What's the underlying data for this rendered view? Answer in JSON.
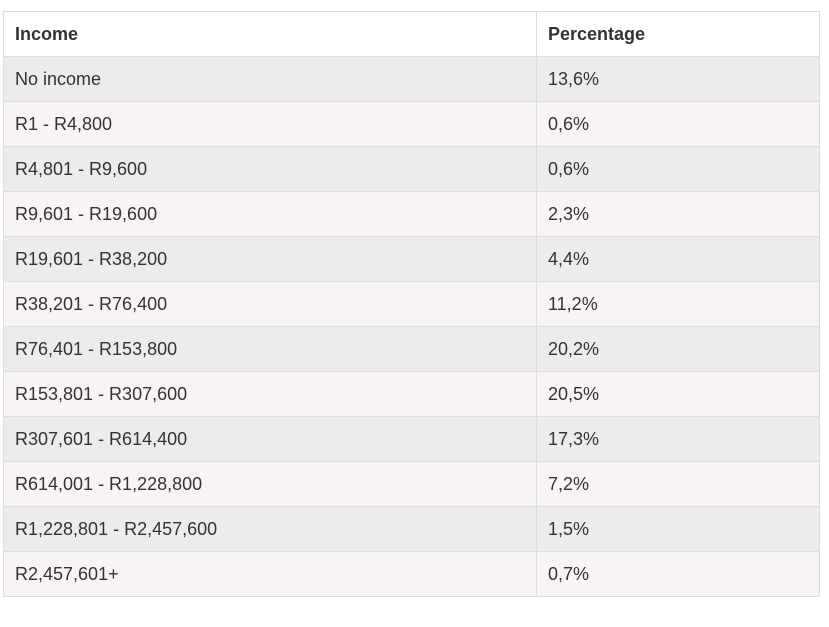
{
  "table": {
    "headers": [
      "Income",
      "Percentage"
    ],
    "rows": [
      [
        "No income",
        "13,6%"
      ],
      [
        "R1 - R4,800",
        "0,6%"
      ],
      [
        "R4,801 - R9,600",
        "0,6%"
      ],
      [
        "R9,601 - R19,600",
        "2,3%"
      ],
      [
        "R19,601 - R38,200",
        "4,4%"
      ],
      [
        "R38,201 - R76,400",
        "11,2%"
      ],
      [
        "R76,401 - R153,800",
        "20,2%"
      ],
      [
        "R153,801 - R307,600",
        "20,5%"
      ],
      [
        "R307,601 - R614,400",
        "17,3%"
      ],
      [
        "R614,001 - R1,228,800",
        "7,2%"
      ],
      [
        "R1,228,801 - R2,457,600",
        "1,5%"
      ],
      [
        "R2,457,601+",
        "0,7%"
      ]
    ]
  },
  "colors": {
    "row_odd": "#ececee",
    "row_even": "#f8f4f5",
    "border": "#dddddd",
    "text": "#333333"
  }
}
